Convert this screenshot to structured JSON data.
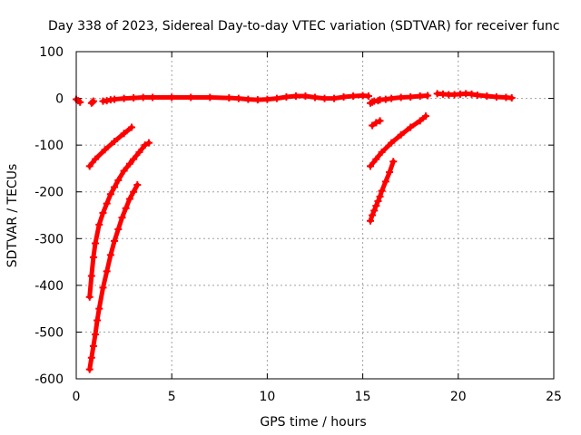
{
  "chart_data": {
    "type": "scatter",
    "title": "Day 338 of 2023, Sidereal Day-to-day VTEC variation (SDTVAR) for receiver func",
    "xlabel": "GPS time / hours",
    "ylabel": "SDTVAR / TECUs",
    "xlim": [
      0,
      25
    ],
    "ylim": [
      -600,
      100
    ],
    "xticks": [
      0,
      5,
      10,
      15,
      20,
      25
    ],
    "yticks": [
      100,
      0,
      -100,
      -200,
      -300,
      -400,
      -500,
      -600
    ],
    "grid": true,
    "legend": "none",
    "marker_color": "#ff0000",
    "series": [
      {
        "x": [
          0.0,
          0.1,
          0.2
        ],
        "y": [
          -2,
          -5,
          -8
        ]
      },
      {
        "x": [
          0.8,
          0.85,
          0.9
        ],
        "y": [
          -10,
          -8,
          -6
        ]
      },
      {
        "x": [
          1.4,
          1.6,
          1.8,
          2.0,
          2.5,
          3.0,
          3.5,
          4.0,
          5.0,
          6.0,
          7.0,
          8.0,
          8.5,
          9.0,
          9.5,
          10.0,
          10.5,
          11.0,
          11.5,
          12.0,
          12.5,
          13.0,
          13.5,
          14.0,
          14.5,
          15.0,
          15.3
        ],
        "y": [
          -6,
          -5,
          -3,
          -2,
          0,
          1,
          2,
          2,
          2,
          2,
          2,
          1,
          0,
          -2,
          -3,
          -2,
          0,
          3,
          5,
          5,
          2,
          0,
          0,
          3,
          5,
          6,
          5
        ]
      },
      {
        "x": [
          0.7,
          1.0,
          1.5,
          2.0,
          2.5,
          2.9
        ],
        "y": [
          -145,
          -130,
          -110,
          -92,
          -75,
          -62
        ]
      },
      {
        "x": [
          0.7,
          0.8,
          0.9,
          1.0,
          1.2,
          1.4,
          1.6,
          1.8,
          2.0,
          2.2,
          2.5,
          2.8,
          3.0,
          3.3,
          3.6,
          3.8
        ],
        "y": [
          -425,
          -380,
          -340,
          -310,
          -270,
          -245,
          -225,
          -205,
          -190,
          -175,
          -155,
          -140,
          -130,
          -115,
          -100,
          -95
        ]
      },
      {
        "x": [
          0.7,
          0.8,
          0.9,
          1.0,
          1.1,
          1.2,
          1.4,
          1.6,
          1.8,
          2.0,
          2.2,
          2.4,
          2.6,
          2.8,
          3.0,
          3.2
        ],
        "y": [
          -580,
          -555,
          -530,
          -505,
          -475,
          -450,
          -405,
          -370,
          -335,
          -305,
          -280,
          -255,
          -235,
          -215,
          -200,
          -185
        ]
      },
      {
        "x": [
          15.4,
          15.5,
          15.6,
          15.8
        ],
        "y": [
          -10,
          -8,
          -6,
          -5
        ]
      },
      {
        "x": [
          15.9,
          16.2,
          16.5,
          17.0,
          17.5,
          18.0,
          18.4
        ],
        "y": [
          -3,
          -2,
          0,
          2,
          3,
          5,
          6
        ]
      },
      {
        "x": [
          18.9,
          19.2,
          19.5,
          19.8,
          20.1,
          20.4,
          20.7,
          21.0,
          21.5,
          22.0,
          22.5,
          22.8
        ],
        "y": [
          10,
          9,
          8,
          8,
          9,
          10,
          9,
          7,
          5,
          3,
          2,
          1
        ]
      },
      {
        "x": [
          15.5,
          15.7,
          15.9
        ],
        "y": [
          -58,
          -52,
          -48
        ]
      },
      {
        "x": [
          15.4,
          15.7,
          16.0,
          16.5,
          17.0,
          17.5,
          18.0,
          18.3
        ],
        "y": [
          -145,
          -130,
          -115,
          -95,
          -78,
          -62,
          -48,
          -38
        ]
      },
      {
        "x": [
          15.4,
          15.5,
          15.6,
          15.7,
          15.8,
          15.9,
          16.0,
          16.2,
          16.4,
          16.6
        ],
        "y": [
          -262,
          -250,
          -240,
          -230,
          -220,
          -210,
          -198,
          -178,
          -158,
          -135
        ]
      }
    ]
  }
}
